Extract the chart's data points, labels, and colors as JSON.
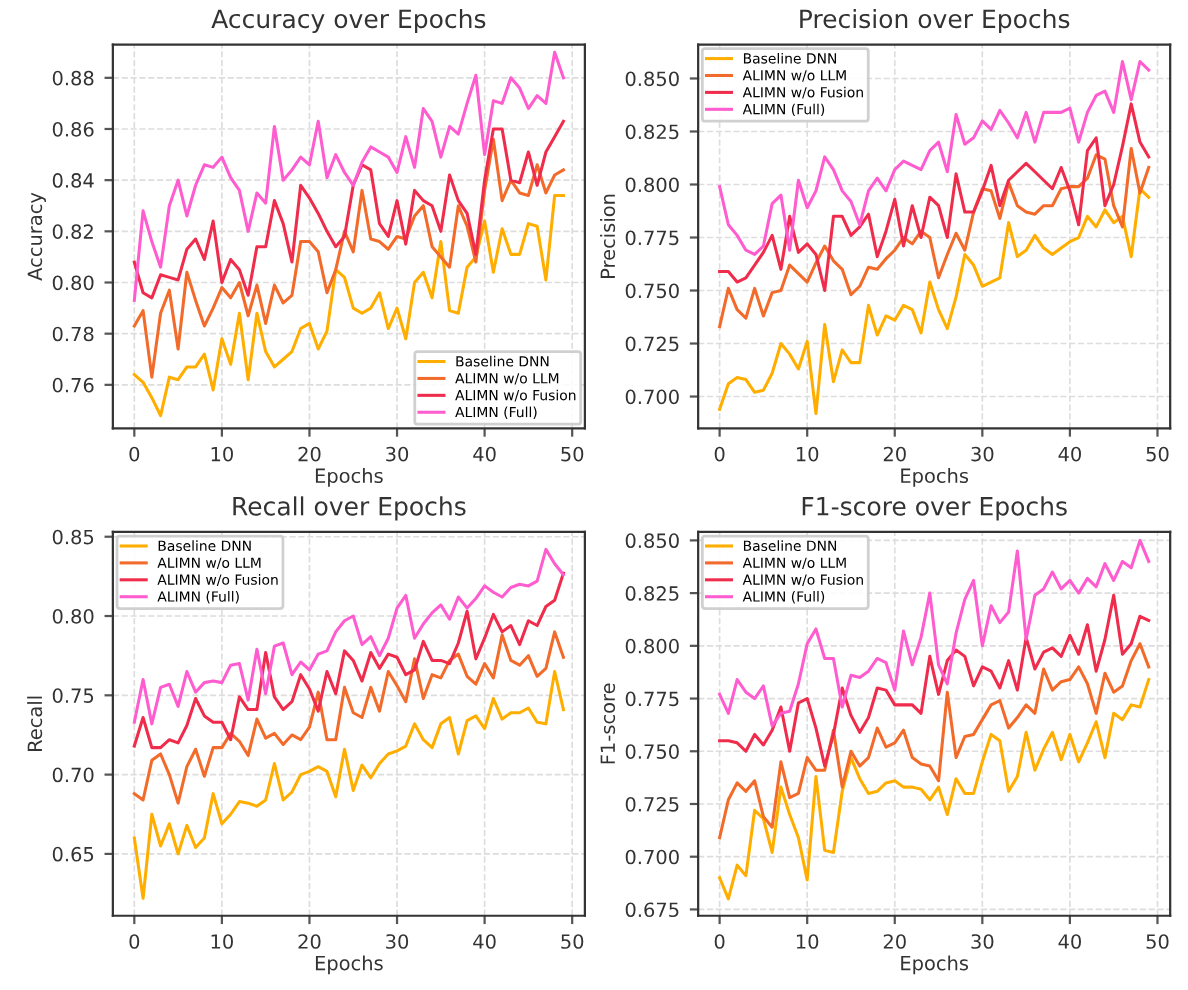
{
  "chart_data": [
    {
      "type": "line",
      "title": "Accuracy over Epochs",
      "xlabel": "Epochs",
      "ylabel": "Accuracy",
      "x": [
        0,
        1,
        2,
        3,
        4,
        5,
        6,
        7,
        8,
        9,
        10,
        11,
        12,
        13,
        14,
        15,
        16,
        17,
        18,
        19,
        20,
        21,
        22,
        23,
        24,
        25,
        26,
        27,
        28,
        29,
        30,
        31,
        32,
        33,
        34,
        35,
        36,
        37,
        38,
        39,
        40,
        41,
        42,
        43,
        44,
        45,
        46,
        47,
        48,
        49
      ],
      "xlim": [
        -2.45,
        51.45
      ],
      "xticks": [
        0,
        10,
        20,
        30,
        40,
        50
      ],
      "ylim": [
        0.743,
        0.893
      ],
      "yticks": [
        0.76,
        0.78,
        {
          "value": 0.8,
          "label": "0.80"
        },
        0.82,
        0.84,
        0.86,
        0.88
      ],
      "grid": true,
      "legend": "bottom right",
      "line_style": "solid",
      "marker": "none",
      "series": [
        {
          "name": "Baseline DNN",
          "color": "#ffae00",
          "values": [
            0.764,
            0.761,
            0.755,
            0.748,
            0.763,
            0.762,
            0.767,
            0.767,
            0.772,
            0.758,
            0.778,
            0.768,
            0.788,
            0.762,
            0.788,
            0.773,
            0.767,
            0.77,
            0.773,
            0.782,
            0.784,
            0.774,
            0.781,
            0.805,
            0.802,
            0.79,
            0.788,
            0.79,
            0.796,
            0.782,
            0.79,
            0.778,
            0.8,
            0.804,
            0.794,
            0.816,
            0.789,
            0.788,
            0.806,
            0.81,
            0.824,
            0.804,
            0.821,
            0.811,
            0.811,
            0.823,
            0.822,
            0.801,
            0.834,
            0.834
          ]
        },
        {
          "name": "ALIMN w/o LLM",
          "color": "#f26b2a",
          "values": [
            0.783,
            0.789,
            0.763,
            0.788,
            0.797,
            0.774,
            0.804,
            0.793,
            0.783,
            0.79,
            0.798,
            0.794,
            0.8,
            0.787,
            0.799,
            0.784,
            0.799,
            0.792,
            0.795,
            0.816,
            0.816,
            0.812,
            0.796,
            0.805,
            0.82,
            0.812,
            0.836,
            0.817,
            0.816,
            0.813,
            0.818,
            0.817,
            0.826,
            0.83,
            0.814,
            0.81,
            0.806,
            0.83,
            0.822,
            0.808,
            0.836,
            0.856,
            0.832,
            0.84,
            0.835,
            0.834,
            0.846,
            0.835,
            0.842,
            0.844
          ]
        },
        {
          "name": "ALIMN w/o Fusion",
          "color": "#f02c4c",
          "values": [
            0.808,
            0.796,
            0.794,
            0.803,
            0.802,
            0.801,
            0.813,
            0.817,
            0.809,
            0.824,
            0.8,
            0.809,
            0.805,
            0.795,
            0.814,
            0.814,
            0.832,
            0.823,
            0.808,
            0.838,
            0.833,
            0.827,
            0.82,
            0.814,
            0.818,
            0.838,
            0.846,
            0.844,
            0.823,
            0.818,
            0.832,
            0.815,
            0.836,
            0.832,
            0.83,
            0.82,
            0.842,
            0.832,
            0.827,
            0.811,
            0.84,
            0.86,
            0.86,
            0.84,
            0.839,
            0.851,
            0.838,
            0.851,
            0.857,
            0.863
          ]
        },
        {
          "name": "ALIMN (Full)",
          "color": "#ff5ccf",
          "values": [
            0.793,
            0.828,
            0.816,
            0.806,
            0.83,
            0.84,
            0.826,
            0.838,
            0.846,
            0.845,
            0.849,
            0.841,
            0.836,
            0.82,
            0.835,
            0.831,
            0.861,
            0.84,
            0.844,
            0.849,
            0.846,
            0.863,
            0.841,
            0.85,
            0.843,
            0.838,
            0.847,
            0.853,
            0.851,
            0.849,
            0.843,
            0.857,
            0.845,
            0.868,
            0.863,
            0.849,
            0.861,
            0.858,
            0.87,
            0.881,
            0.85,
            0.871,
            0.87,
            0.88,
            0.876,
            0.868,
            0.873,
            0.87,
            0.89,
            0.88
          ]
        }
      ]
    },
    {
      "type": "line",
      "title": "Precision over Epochs",
      "xlabel": "Epochs",
      "ylabel": "Precision",
      "x": [
        0,
        1,
        2,
        3,
        4,
        5,
        6,
        7,
        8,
        9,
        10,
        11,
        12,
        13,
        14,
        15,
        16,
        17,
        18,
        19,
        20,
        21,
        22,
        23,
        24,
        25,
        26,
        27,
        28,
        29,
        30,
        31,
        32,
        33,
        34,
        35,
        36,
        37,
        38,
        39,
        40,
        41,
        42,
        43,
        44,
        45,
        46,
        47,
        48,
        49
      ],
      "xlim": [
        -2.45,
        51.45
      ],
      "xticks": [
        0,
        10,
        20,
        30,
        40,
        50
      ],
      "ylim": [
        0.685,
        0.866
      ],
      "yticks": [
        {
          "value": 0.7,
          "label": "0.700"
        },
        {
          "value": 0.725,
          "label": "0.725"
        },
        {
          "value": 0.75,
          "label": "0.750"
        },
        {
          "value": 0.775,
          "label": "0.775"
        },
        {
          "value": 0.8,
          "label": "0.800"
        },
        {
          "value": 0.825,
          "label": "0.825"
        },
        {
          "value": 0.85,
          "label": "0.850"
        }
      ],
      "grid": true,
      "legend": "top left",
      "line_style": "solid",
      "marker": "none",
      "series": [
        {
          "name": "Baseline DNN",
          "color": "#ffae00",
          "values": [
            0.694,
            0.706,
            0.709,
            0.708,
            0.702,
            0.703,
            0.711,
            0.725,
            0.72,
            0.713,
            0.726,
            0.692,
            0.734,
            0.707,
            0.722,
            0.716,
            0.716,
            0.743,
            0.729,
            0.738,
            0.736,
            0.743,
            0.741,
            0.73,
            0.754,
            0.741,
            0.732,
            0.747,
            0.767,
            0.762,
            0.752,
            0.754,
            0.756,
            0.782,
            0.766,
            0.769,
            0.776,
            0.77,
            0.767,
            0.77,
            0.773,
            0.775,
            0.785,
            0.78,
            0.788,
            0.782,
            0.785,
            0.766,
            0.798,
            0.794
          ]
        },
        {
          "name": "ALIMN w/o LLM",
          "color": "#f26b2a",
          "values": [
            0.733,
            0.751,
            0.741,
            0.737,
            0.751,
            0.738,
            0.749,
            0.75,
            0.762,
            0.758,
            0.754,
            0.763,
            0.771,
            0.764,
            0.76,
            0.748,
            0.752,
            0.761,
            0.76,
            0.765,
            0.769,
            0.775,
            0.772,
            0.778,
            0.775,
            0.756,
            0.767,
            0.777,
            0.769,
            0.787,
            0.798,
            0.797,
            0.784,
            0.801,
            0.79,
            0.787,
            0.786,
            0.79,
            0.79,
            0.798,
            0.799,
            0.799,
            0.803,
            0.814,
            0.812,
            0.79,
            0.78,
            0.817,
            0.796,
            0.808
          ]
        },
        {
          "name": "ALIMN w/o Fusion",
          "color": "#f02c4c",
          "values": [
            0.759,
            0.759,
            0.754,
            0.756,
            0.762,
            0.768,
            0.776,
            0.76,
            0.785,
            0.768,
            0.772,
            0.767,
            0.75,
            0.785,
            0.785,
            0.776,
            0.78,
            0.786,
            0.766,
            0.778,
            0.793,
            0.771,
            0.79,
            0.775,
            0.794,
            0.79,
            0.775,
            0.805,
            0.787,
            0.787,
            0.797,
            0.809,
            0.79,
            0.802,
            0.806,
            0.81,
            0.806,
            0.802,
            0.798,
            0.808,
            0.797,
            0.781,
            0.816,
            0.822,
            0.79,
            0.8,
            0.818,
            0.838,
            0.82,
            0.813
          ]
        },
        {
          "name": "ALIMN (Full)",
          "color": "#ff5ccf",
          "values": [
            0.799,
            0.781,
            0.776,
            0.769,
            0.767,
            0.771,
            0.791,
            0.795,
            0.769,
            0.802,
            0.789,
            0.797,
            0.813,
            0.807,
            0.797,
            0.792,
            0.781,
            0.797,
            0.803,
            0.797,
            0.807,
            0.811,
            0.809,
            0.807,
            0.816,
            0.82,
            0.806,
            0.833,
            0.819,
            0.822,
            0.83,
            0.826,
            0.835,
            0.829,
            0.822,
            0.834,
            0.82,
            0.834,
            0.834,
            0.834,
            0.836,
            0.82,
            0.834,
            0.842,
            0.844,
            0.834,
            0.858,
            0.84,
            0.858,
            0.854
          ]
        }
      ]
    },
    {
      "type": "line",
      "title": "Recall over Epochs",
      "xlabel": "Epochs",
      "ylabel": "Recall",
      "x": [
        0,
        1,
        2,
        3,
        4,
        5,
        6,
        7,
        8,
        9,
        10,
        11,
        12,
        13,
        14,
        15,
        16,
        17,
        18,
        19,
        20,
        21,
        22,
        23,
        24,
        25,
        26,
        27,
        28,
        29,
        30,
        31,
        32,
        33,
        34,
        35,
        36,
        37,
        38,
        39,
        40,
        41,
        42,
        43,
        44,
        45,
        46,
        47,
        48,
        49
      ],
      "xlim": [
        -2.45,
        51.45
      ],
      "xticks": [
        0,
        10,
        20,
        30,
        40,
        50
      ],
      "ylim": [
        0.611,
        0.853
      ],
      "yticks": [
        {
          "value": 0.65,
          "label": "0.65"
        },
        {
          "value": 0.7,
          "label": "0.70"
        },
        {
          "value": 0.75,
          "label": "0.75"
        },
        {
          "value": 0.8,
          "label": "0.80"
        },
        {
          "value": 0.85,
          "label": "0.85"
        }
      ],
      "grid": true,
      "legend": "top left",
      "line_style": "solid",
      "marker": "none",
      "series": [
        {
          "name": "Baseline DNN",
          "color": "#ffae00",
          "values": [
            0.66,
            0.622,
            0.675,
            0.655,
            0.669,
            0.65,
            0.668,
            0.654,
            0.66,
            0.688,
            0.669,
            0.675,
            0.683,
            0.682,
            0.68,
            0.684,
            0.707,
            0.684,
            0.689,
            0.7,
            0.702,
            0.705,
            0.702,
            0.686,
            0.716,
            0.69,
            0.706,
            0.698,
            0.707,
            0.713,
            0.715,
            0.718,
            0.732,
            0.722,
            0.717,
            0.732,
            0.736,
            0.713,
            0.734,
            0.737,
            0.729,
            0.748,
            0.735,
            0.739,
            0.739,
            0.742,
            0.733,
            0.732,
            0.765,
            0.741
          ]
        },
        {
          "name": "ALIMN w/o LLM",
          "color": "#f26b2a",
          "values": [
            0.688,
            0.684,
            0.709,
            0.713,
            0.7,
            0.682,
            0.705,
            0.716,
            0.699,
            0.717,
            0.717,
            0.726,
            0.721,
            0.712,
            0.735,
            0.723,
            0.726,
            0.719,
            0.725,
            0.722,
            0.73,
            0.752,
            0.722,
            0.722,
            0.755,
            0.739,
            0.736,
            0.755,
            0.74,
            0.765,
            0.756,
            0.746,
            0.773,
            0.748,
            0.763,
            0.761,
            0.772,
            0.776,
            0.762,
            0.757,
            0.77,
            0.761,
            0.788,
            0.772,
            0.769,
            0.775,
            0.762,
            0.767,
            0.79,
            0.774
          ]
        },
        {
          "name": "ALIMN w/o Fusion",
          "color": "#f02c4c",
          "values": [
            0.718,
            0.736,
            0.717,
            0.717,
            0.722,
            0.72,
            0.731,
            0.748,
            0.737,
            0.733,
            0.733,
            0.722,
            0.749,
            0.741,
            0.741,
            0.777,
            0.749,
            0.741,
            0.746,
            0.763,
            0.754,
            0.74,
            0.765,
            0.751,
            0.778,
            0.772,
            0.759,
            0.777,
            0.767,
            0.776,
            0.774,
            0.763,
            0.766,
            0.784,
            0.772,
            0.772,
            0.77,
            0.783,
            0.803,
            0.773,
            0.786,
            0.801,
            0.79,
            0.794,
            0.782,
            0.797,
            0.794,
            0.806,
            0.81,
            0.827
          ]
        },
        {
          "name": "ALIMN (Full)",
          "color": "#ff5ccf",
          "values": [
            0.733,
            0.76,
            0.732,
            0.755,
            0.757,
            0.743,
            0.765,
            0.752,
            0.758,
            0.759,
            0.758,
            0.769,
            0.77,
            0.747,
            0.779,
            0.751,
            0.781,
            0.783,
            0.763,
            0.771,
            0.766,
            0.776,
            0.778,
            0.79,
            0.797,
            0.8,
            0.782,
            0.787,
            0.775,
            0.786,
            0.805,
            0.813,
            0.786,
            0.795,
            0.802,
            0.807,
            0.798,
            0.812,
            0.805,
            0.811,
            0.819,
            0.815,
            0.812,
            0.818,
            0.82,
            0.819,
            0.822,
            0.842,
            0.833,
            0.826
          ]
        }
      ]
    },
    {
      "type": "line",
      "title": "F1-score over Epochs",
      "xlabel": "Epochs",
      "ylabel": "F1-score",
      "x": [
        0,
        1,
        2,
        3,
        4,
        5,
        6,
        7,
        8,
        9,
        10,
        11,
        12,
        13,
        14,
        15,
        16,
        17,
        18,
        19,
        20,
        21,
        22,
        23,
        24,
        25,
        26,
        27,
        28,
        29,
        30,
        31,
        32,
        33,
        34,
        35,
        36,
        37,
        38,
        39,
        40,
        41,
        42,
        43,
        44,
        45,
        46,
        47,
        48,
        49
      ],
      "xlim": [
        -2.45,
        51.45
      ],
      "xticks": [
        0,
        10,
        20,
        30,
        40,
        50
      ],
      "ylim": [
        0.672,
        0.854
      ],
      "yticks": [
        {
          "value": 0.675,
          "label": "0.675"
        },
        {
          "value": 0.7,
          "label": "0.700"
        },
        {
          "value": 0.725,
          "label": "0.725"
        },
        {
          "value": 0.75,
          "label": "0.750"
        },
        {
          "value": 0.775,
          "label": "0.775"
        },
        {
          "value": 0.8,
          "label": "0.800"
        },
        {
          "value": 0.825,
          "label": "0.825"
        },
        {
          "value": 0.85,
          "label": "0.850"
        }
      ],
      "grid": true,
      "legend": "top left",
      "line_style": "solid",
      "marker": "none",
      "series": [
        {
          "name": "Baseline DNN",
          "color": "#ffae00",
          "values": [
            0.69,
            0.68,
            0.696,
            0.691,
            0.722,
            0.718,
            0.702,
            0.733,
            0.72,
            0.709,
            0.689,
            0.738,
            0.703,
            0.702,
            0.731,
            0.747,
            0.737,
            0.73,
            0.731,
            0.735,
            0.736,
            0.733,
            0.733,
            0.732,
            0.727,
            0.733,
            0.72,
            0.737,
            0.73,
            0.73,
            0.745,
            0.758,
            0.755,
            0.731,
            0.738,
            0.759,
            0.741,
            0.751,
            0.759,
            0.746,
            0.758,
            0.745,
            0.754,
            0.764,
            0.747,
            0.768,
            0.765,
            0.772,
            0.771,
            0.784
          ]
        },
        {
          "name": "ALIMN w/o LLM",
          "color": "#f26b2a",
          "values": [
            0.709,
            0.727,
            0.735,
            0.731,
            0.736,
            0.719,
            0.714,
            0.745,
            0.728,
            0.73,
            0.747,
            0.741,
            0.741,
            0.76,
            0.733,
            0.75,
            0.743,
            0.747,
            0.761,
            0.752,
            0.754,
            0.76,
            0.747,
            0.744,
            0.743,
            0.736,
            0.778,
            0.747,
            0.757,
            0.758,
            0.765,
            0.772,
            0.774,
            0.761,
            0.766,
            0.772,
            0.768,
            0.789,
            0.779,
            0.783,
            0.784,
            0.79,
            0.782,
            0.768,
            0.787,
            0.778,
            0.781,
            0.793,
            0.801,
            0.79
          ]
        },
        {
          "name": "ALIMN w/o Fusion",
          "color": "#f02c4c",
          "values": [
            0.755,
            0.755,
            0.754,
            0.75,
            0.758,
            0.753,
            0.76,
            0.771,
            0.75,
            0.773,
            0.775,
            0.761,
            0.743,
            0.758,
            0.78,
            0.767,
            0.759,
            0.766,
            0.78,
            0.779,
            0.772,
            0.772,
            0.772,
            0.768,
            0.795,
            0.777,
            0.793,
            0.798,
            0.795,
            0.781,
            0.79,
            0.788,
            0.78,
            0.793,
            0.779,
            0.804,
            0.789,
            0.797,
            0.799,
            0.795,
            0.805,
            0.796,
            0.81,
            0.788,
            0.803,
            0.824,
            0.796,
            0.801,
            0.814,
            0.812
          ]
        },
        {
          "name": "ALIMN (Full)",
          "color": "#ff5ccf",
          "values": [
            0.777,
            0.768,
            0.784,
            0.778,
            0.775,
            0.781,
            0.762,
            0.768,
            0.769,
            0.782,
            0.801,
            0.808,
            0.794,
            0.794,
            0.771,
            0.786,
            0.785,
            0.788,
            0.794,
            0.792,
            0.779,
            0.807,
            0.791,
            0.804,
            0.825,
            0.791,
            0.782,
            0.806,
            0.822,
            0.831,
            0.8,
            0.819,
            0.811,
            0.816,
            0.845,
            0.803,
            0.824,
            0.827,
            0.835,
            0.827,
            0.831,
            0.825,
            0.832,
            0.828,
            0.839,
            0.831,
            0.84,
            0.837,
            0.85,
            0.84
          ]
        }
      ]
    }
  ]
}
